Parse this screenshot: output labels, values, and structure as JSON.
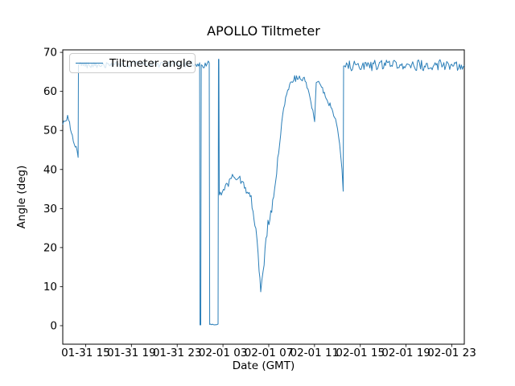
{
  "figure": {
    "title": "APOLLO Tiltmeter",
    "xlabel": "Date (GMT)",
    "ylabel": "Angle (deg)",
    "legend": {
      "label": "Tiltmeter angle",
      "position": "upper left"
    }
  },
  "chart_data": {
    "type": "line",
    "title": "APOLLO Tiltmeter",
    "xlabel": "Date (GMT)",
    "ylabel": "Angle (deg)",
    "legend_entries": [
      "Tiltmeter angle"
    ],
    "line_color": "#1f77b4",
    "grid": false,
    "x_window_hours": [
      0,
      35.09
    ],
    "t_unit": "hours since 01-31 13:00 GMT",
    "x_tick_offsets_hours": [
      2,
      6,
      10,
      14,
      18,
      22,
      26,
      30,
      34
    ],
    "x_tick_labels": [
      "01-31 15",
      "01-31 19",
      "01-31 23",
      "02-01 03",
      "02-01 07",
      "02-01 11",
      "02-01 15",
      "02-01 19",
      "02-01 23"
    ],
    "y_ticks": [
      0,
      10,
      20,
      30,
      40,
      50,
      60,
      70
    ],
    "ylim": [
      -4.74,
      70.64
    ],
    "series": [
      {
        "name": "Tiltmeter angle",
        "color": "#1f77b4",
        "anchors_t_v_noise": [
          [
            0.0,
            51.5,
            0.9
          ],
          [
            0.42,
            53.3,
            0.9
          ],
          [
            1.34,
            43.7,
            0.0
          ],
          [
            1.37,
            66.8,
            0.85
          ],
          [
            11.96,
            67.0,
            0.0
          ],
          [
            11.99,
            0.2,
            0.0
          ],
          [
            12.06,
            0.2,
            0.0
          ],
          [
            12.1,
            66.8,
            0.8
          ],
          [
            12.8,
            67.0,
            0.0
          ],
          [
            12.84,
            0.3,
            0.12
          ],
          [
            13.57,
            0.3,
            0.0
          ],
          [
            13.61,
            68.2,
            0.0
          ],
          [
            13.64,
            68.2,
            0.0
          ],
          [
            13.68,
            33.5,
            0.8
          ],
          [
            14.21,
            35.5,
            0.9
          ],
          [
            14.91,
            38.3,
            0.9
          ],
          [
            15.4,
            38.0,
            0.9
          ],
          [
            15.96,
            35.0,
            0.9
          ],
          [
            16.46,
            32.5,
            1.0
          ],
          [
            16.88,
            25.0,
            1.3
          ],
          [
            17.16,
            14.0,
            1.5
          ],
          [
            17.3,
            8.0,
            1.2
          ],
          [
            17.51,
            14.0,
            1.5
          ],
          [
            17.93,
            26.0,
            1.3
          ],
          [
            18.43,
            32.0,
            1.2
          ],
          [
            18.78,
            42.0,
            1.5
          ],
          [
            19.13,
            52.0,
            1.4
          ],
          [
            19.48,
            58.0,
            1.1
          ],
          [
            19.83,
            61.5,
            0.9
          ],
          [
            20.18,
            63.2,
            0.9
          ],
          [
            21.1,
            63.0,
            0.8
          ],
          [
            21.52,
            60.0,
            0.8
          ],
          [
            21.94,
            53.5,
            0.5
          ],
          [
            22.01,
            52.5,
            0.3
          ],
          [
            22.15,
            62.5,
            0.4
          ],
          [
            22.36,
            62.8,
            0.6
          ],
          [
            22.78,
            60.0,
            0.7
          ],
          [
            23.35,
            56.5,
            0.8
          ],
          [
            23.84,
            53.0,
            0.9
          ],
          [
            24.19,
            47.0,
            1.0
          ],
          [
            24.4,
            40.0,
            1.2
          ],
          [
            24.51,
            34.0,
            0.0
          ],
          [
            24.54,
            66.5,
            1.4
          ],
          [
            35.09,
            66.8,
            0.0
          ]
        ]
      }
    ]
  }
}
